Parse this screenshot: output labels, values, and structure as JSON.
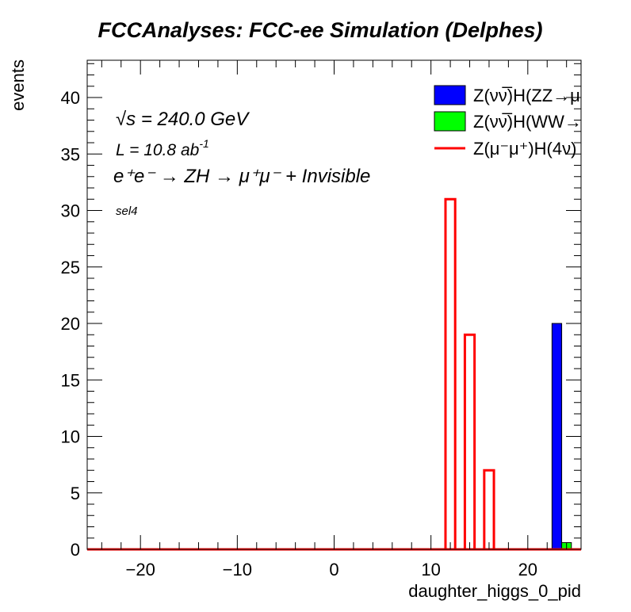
{
  "chart_data": {
    "type": "histogram",
    "title": "FCCAnalyses: FCC-ee Simulation (Delphes)",
    "xlabel": "daughter_higgs_0_pid",
    "ylabel": "events",
    "xlim": [
      -25.5,
      25.5
    ],
    "ylim": [
      0,
      43.3
    ],
    "bin_width": 1,
    "x_ticks": [
      -20,
      -10,
      0,
      10,
      20
    ],
    "x_tick_labels": [
      "−20",
      "−10",
      "0",
      "10",
      "20"
    ],
    "y_ticks": [
      0,
      5,
      10,
      15,
      20,
      25,
      30,
      35,
      40
    ],
    "y_tick_labels": [
      "0",
      "5",
      "10",
      "15",
      "20",
      "25",
      "30",
      "35",
      "40"
    ],
    "grid": false,
    "legend_position": "top-right",
    "series": [
      {
        "name": "Z(νν̅)H(ZZ→μ⁻μ⁺ν̅",
        "style": "filled",
        "color": "#0000ff",
        "bins": [
          {
            "x": 23,
            "value": 20
          }
        ]
      },
      {
        "name": "Z(νν̅)H(WW→μ⁻ν̅μ",
        "style": "filled",
        "color": "#00ff00",
        "bins": [
          {
            "x": 24,
            "value": 0.6
          }
        ]
      },
      {
        "name": "Z(μ⁻μ⁺)H(4ν)",
        "style": "outline",
        "color": "#ff0000",
        "bins": [
          {
            "x": 12,
            "value": 31
          },
          {
            "x": 14,
            "value": 19
          },
          {
            "x": 16,
            "value": 7
          }
        ]
      }
    ],
    "annotations": {
      "energy": "√s = 240.0 GeV",
      "lumi_prefix": "L = 10.8 ab",
      "lumi_exp": "-1",
      "process": "e⁺e⁻ → ZH → μ⁺μ⁻ + Invisible",
      "selection": "sel4"
    }
  }
}
